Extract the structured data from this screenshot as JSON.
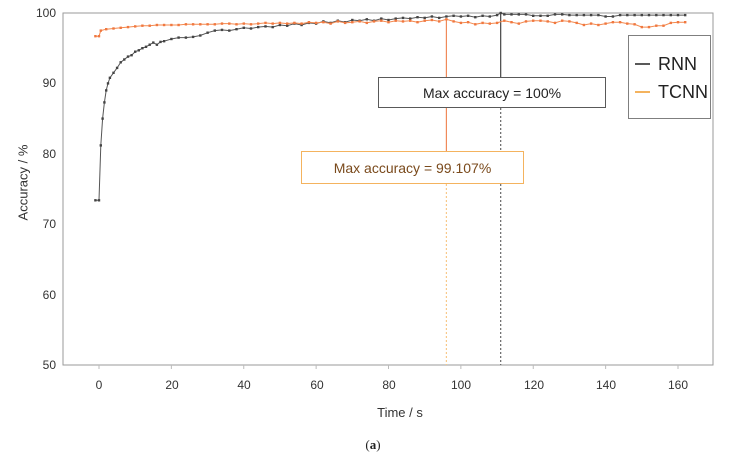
{
  "chart_data": {
    "type": "line",
    "title": "",
    "xlabel": "Time / s",
    "ylabel": "Accuracy / %",
    "xlim": [
      -10,
      170
    ],
    "ylim": [
      50,
      100
    ],
    "x_ticks": [
      0,
      20,
      40,
      60,
      80,
      100,
      120,
      140,
      160
    ],
    "y_ticks": [
      50,
      60,
      70,
      80,
      90,
      100
    ],
    "grid": false,
    "legend_position": "upper right (outside-ish, overlapping frame)",
    "caption": "(a)",
    "series": [
      {
        "name": "RNN",
        "color": "#595959",
        "points": [
          [
            -1,
            73.4
          ],
          [
            0,
            73.4
          ],
          [
            0.5,
            81.2
          ],
          [
            1,
            85.0
          ],
          [
            1.5,
            87.3
          ],
          [
            2,
            89.0
          ],
          [
            2.5,
            90.0
          ],
          [
            3,
            90.8
          ],
          [
            4,
            91.5
          ],
          [
            5,
            92.2
          ],
          [
            6,
            93.0
          ],
          [
            7,
            93.4
          ],
          [
            8,
            93.8
          ],
          [
            9,
            94.0
          ],
          [
            10,
            94.5
          ],
          [
            11,
            94.7
          ],
          [
            12,
            95.0
          ],
          [
            13,
            95.2
          ],
          [
            14,
            95.5
          ],
          [
            15,
            95.8
          ],
          [
            16,
            95.5
          ],
          [
            17,
            95.9
          ],
          [
            18,
            96.0
          ],
          [
            20,
            96.3
          ],
          [
            22,
            96.5
          ],
          [
            24,
            96.5
          ],
          [
            26,
            96.6
          ],
          [
            28,
            96.8
          ],
          [
            30,
            97.2
          ],
          [
            32,
            97.5
          ],
          [
            34,
            97.6
          ],
          [
            36,
            97.5
          ],
          [
            38,
            97.7
          ],
          [
            40,
            97.9
          ],
          [
            42,
            97.8
          ],
          [
            44,
            98.0
          ],
          [
            46,
            98.1
          ],
          [
            48,
            98.0
          ],
          [
            50,
            98.3
          ],
          [
            52,
            98.2
          ],
          [
            54,
            98.5
          ],
          [
            56,
            98.3
          ],
          [
            58,
            98.6
          ],
          [
            60,
            98.5
          ],
          [
            62,
            98.8
          ],
          [
            64,
            98.6
          ],
          [
            66,
            98.9
          ],
          [
            68,
            98.7
          ],
          [
            70,
            99.0
          ],
          [
            72,
            98.9
          ],
          [
            74,
            99.1
          ],
          [
            76,
            98.9
          ],
          [
            78,
            99.2
          ],
          [
            80,
            99.0
          ],
          [
            82,
            99.2
          ],
          [
            84,
            99.3
          ],
          [
            86,
            99.2
          ],
          [
            88,
            99.4
          ],
          [
            90,
            99.3
          ],
          [
            92,
            99.5
          ],
          [
            94,
            99.3
          ],
          [
            96,
            99.5
          ],
          [
            98,
            99.6
          ],
          [
            100,
            99.5
          ],
          [
            102,
            99.6
          ],
          [
            104,
            99.4
          ],
          [
            106,
            99.6
          ],
          [
            108,
            99.5
          ],
          [
            110,
            99.7
          ],
          [
            111,
            100.0
          ],
          [
            112,
            99.8
          ],
          [
            114,
            99.8
          ],
          [
            116,
            99.8
          ],
          [
            118,
            99.8
          ],
          [
            120,
            99.6
          ],
          [
            122,
            99.6
          ],
          [
            124,
            99.6
          ],
          [
            126,
            99.8
          ],
          [
            128,
            99.8
          ],
          [
            130,
            99.7
          ],
          [
            132,
            99.7
          ],
          [
            134,
            99.7
          ],
          [
            136,
            99.7
          ],
          [
            138,
            99.7
          ],
          [
            140,
            99.5
          ],
          [
            142,
            99.5
          ],
          [
            144,
            99.7
          ],
          [
            146,
            99.7
          ],
          [
            148,
            99.7
          ],
          [
            150,
            99.7
          ],
          [
            152,
            99.7
          ],
          [
            154,
            99.7
          ],
          [
            156,
            99.7
          ],
          [
            158,
            99.7
          ],
          [
            160,
            99.7
          ],
          [
            162,
            99.7
          ]
        ]
      },
      {
        "name": "TCNN",
        "color": "#f4a460",
        "marker_color": "#f07840",
        "points": [
          [
            -1,
            96.7
          ],
          [
            0,
            96.7
          ],
          [
            0.5,
            97.5
          ],
          [
            2,
            97.7
          ],
          [
            4,
            97.8
          ],
          [
            6,
            97.9
          ],
          [
            8,
            98.0
          ],
          [
            10,
            98.1
          ],
          [
            12,
            98.2
          ],
          [
            14,
            98.2
          ],
          [
            16,
            98.3
          ],
          [
            18,
            98.3
          ],
          [
            20,
            98.3
          ],
          [
            22,
            98.3
          ],
          [
            24,
            98.4
          ],
          [
            26,
            98.4
          ],
          [
            28,
            98.4
          ],
          [
            30,
            98.4
          ],
          [
            32,
            98.4
          ],
          [
            34,
            98.5
          ],
          [
            36,
            98.5
          ],
          [
            38,
            98.4
          ],
          [
            40,
            98.5
          ],
          [
            42,
            98.4
          ],
          [
            44,
            98.5
          ],
          [
            46,
            98.6
          ],
          [
            48,
            98.5
          ],
          [
            50,
            98.6
          ],
          [
            52,
            98.5
          ],
          [
            54,
            98.6
          ],
          [
            56,
            98.5
          ],
          [
            58,
            98.7
          ],
          [
            60,
            98.6
          ],
          [
            62,
            98.7
          ],
          [
            64,
            98.5
          ],
          [
            66,
            98.8
          ],
          [
            68,
            98.6
          ],
          [
            70,
            98.7
          ],
          [
            72,
            98.8
          ],
          [
            74,
            98.6
          ],
          [
            76,
            98.8
          ],
          [
            78,
            98.9
          ],
          [
            80,
            98.7
          ],
          [
            82,
            98.9
          ],
          [
            84,
            98.8
          ],
          [
            86,
            98.9
          ],
          [
            88,
            98.7
          ],
          [
            90,
            98.9
          ],
          [
            92,
            99.0
          ],
          [
            94,
            98.8
          ],
          [
            96,
            99.107
          ],
          [
            98,
            98.8
          ],
          [
            100,
            98.6
          ],
          [
            102,
            98.7
          ],
          [
            104,
            98.4
          ],
          [
            106,
            98.6
          ],
          [
            108,
            98.5
          ],
          [
            110,
            98.6
          ],
          [
            112,
            98.9
          ],
          [
            114,
            98.7
          ],
          [
            116,
            98.5
          ],
          [
            118,
            98.8
          ],
          [
            120,
            98.9
          ],
          [
            122,
            98.9
          ],
          [
            124,
            98.8
          ],
          [
            126,
            98.6
          ],
          [
            128,
            98.9
          ],
          [
            130,
            98.8
          ],
          [
            132,
            98.6
          ],
          [
            134,
            98.3
          ],
          [
            136,
            98.5
          ],
          [
            138,
            98.3
          ],
          [
            140,
            98.5
          ],
          [
            142,
            98.7
          ],
          [
            144,
            98.7
          ],
          [
            146,
            98.5
          ],
          [
            148,
            98.4
          ],
          [
            150,
            98.0
          ],
          [
            152,
            98.0
          ],
          [
            154,
            98.2
          ],
          [
            156,
            98.2
          ],
          [
            158,
            98.6
          ],
          [
            160,
            98.7
          ],
          [
            162,
            98.7
          ]
        ]
      }
    ],
    "annotations": [
      {
        "text": "Max accuracy = 100%",
        "series": "RNN",
        "x": 111,
        "y": 100,
        "color": "#595959"
      },
      {
        "text": "Max accuracy = 99.107%",
        "series": "TCNN",
        "x": 96,
        "y": 99.107,
        "color": "#f4a460"
      }
    ]
  },
  "axes": {
    "y_tick_labels": [
      "100",
      "90",
      "80",
      "70",
      "60",
      "50"
    ],
    "x_tick_labels": [
      "0",
      "20",
      "40",
      "60",
      "80",
      "100",
      "120",
      "140",
      "160"
    ],
    "xlabel": "Time / s",
    "ylabel": "Accuracy / %"
  },
  "legend": {
    "items": [
      {
        "label": "RNN",
        "color": "#595959"
      },
      {
        "label": "TCNN",
        "color": "#f4b35e"
      }
    ]
  },
  "annotations": {
    "rnn": "Max accuracy = 100%",
    "tcnn": "Max accuracy = 99.107%"
  },
  "caption": "a"
}
